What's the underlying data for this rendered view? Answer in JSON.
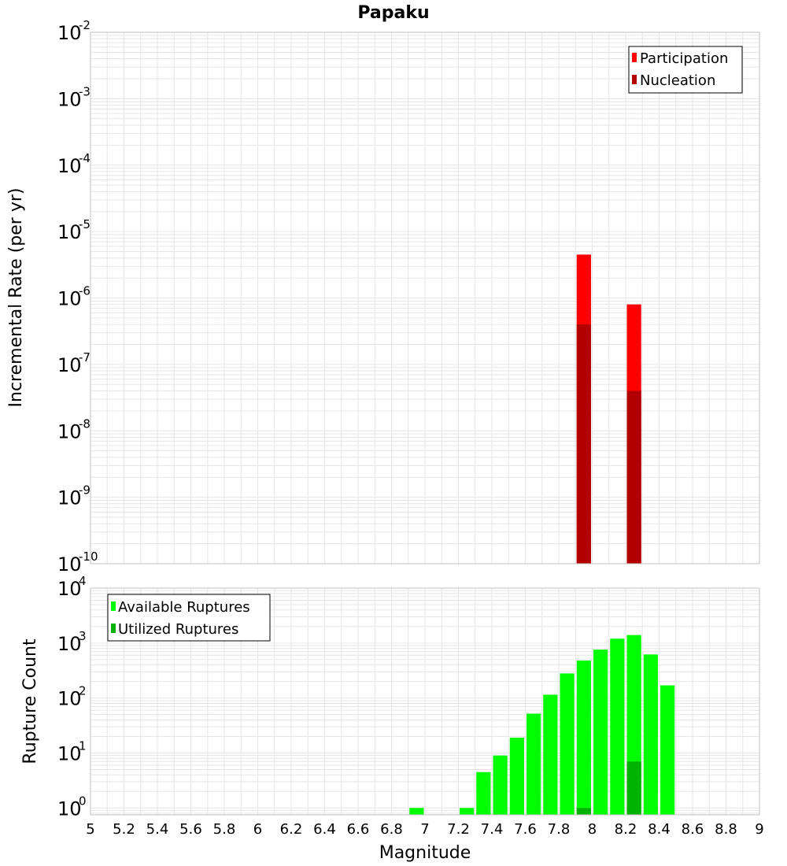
{
  "title": "Papaku",
  "colors": {
    "participation": "#ff0000",
    "nucleation": "#b20000",
    "available": "#00ff00",
    "utilized": "#00b200",
    "grid": "#e6e6e6",
    "frame": "#c0c0c0"
  },
  "chart_data": [
    {
      "type": "bar",
      "xlabel": "Magnitude",
      "ylabel": "Incremental Rate (per yr)",
      "xlim": [
        5,
        9
      ],
      "ylim": [
        1e-10,
        0.01
      ],
      "yscale": "log",
      "grid": true,
      "legend_position": "top-right",
      "bar_width": 0.1,
      "y_ticks": [
        {
          "base": "10",
          "exp": "-10"
        },
        {
          "base": "10",
          "exp": "-9"
        },
        {
          "base": "10",
          "exp": "-8"
        },
        {
          "base": "10",
          "exp": "-7"
        },
        {
          "base": "10",
          "exp": "-6"
        },
        {
          "base": "10",
          "exp": "-5"
        },
        {
          "base": "10",
          "exp": "-4"
        },
        {
          "base": "10",
          "exp": "-3"
        },
        {
          "base": "10",
          "exp": "-2"
        }
      ],
      "series": [
        {
          "name": "Participation",
          "x": [
            7.95,
            8.25
          ],
          "values": [
            4.5e-06,
            8e-07
          ]
        },
        {
          "name": "Nucleation",
          "x": [
            7.95,
            8.25
          ],
          "values": [
            4e-07,
            4e-08
          ]
        }
      ]
    },
    {
      "type": "bar",
      "xlabel": "Magnitude",
      "ylabel": "Rupture Count",
      "xlim": [
        5,
        9
      ],
      "ylim": [
        0.75,
        10000
      ],
      "yscale": "log",
      "grid": true,
      "legend_position": "top-left",
      "bar_width": 0.1,
      "y_ticks": [
        {
          "base": "10",
          "exp": "0",
          "value": 1
        },
        {
          "base": "10",
          "exp": "1",
          "value": 10
        },
        {
          "base": "10",
          "exp": "2",
          "value": 100
        },
        {
          "base": "10",
          "exp": "3",
          "value": 1000
        },
        {
          "base": "10",
          "exp": "4",
          "value": 10000
        }
      ],
      "series": [
        {
          "name": "Available Ruptures",
          "x": [
            6.95,
            7.25,
            7.35,
            7.45,
            7.55,
            7.65,
            7.75,
            7.85,
            7.95,
            8.05,
            8.15,
            8.25,
            8.35,
            8.45
          ],
          "values": [
            1,
            1,
            4.5,
            9,
            19,
            52,
            115,
            280,
            480,
            760,
            1200,
            1400,
            620,
            170
          ]
        },
        {
          "name": "Utilized Ruptures",
          "x": [
            7.95,
            8.25
          ],
          "values": [
            1,
            7
          ]
        }
      ]
    }
  ],
  "x_ticks": [
    "5",
    "5.2",
    "5.4",
    "5.6",
    "5.8",
    "6",
    "6.2",
    "6.4",
    "6.6",
    "6.8",
    "7",
    "7.2",
    "7.4",
    "7.6",
    "7.8",
    "8",
    "8.2",
    "8.4",
    "8.6",
    "8.8",
    "9"
  ]
}
